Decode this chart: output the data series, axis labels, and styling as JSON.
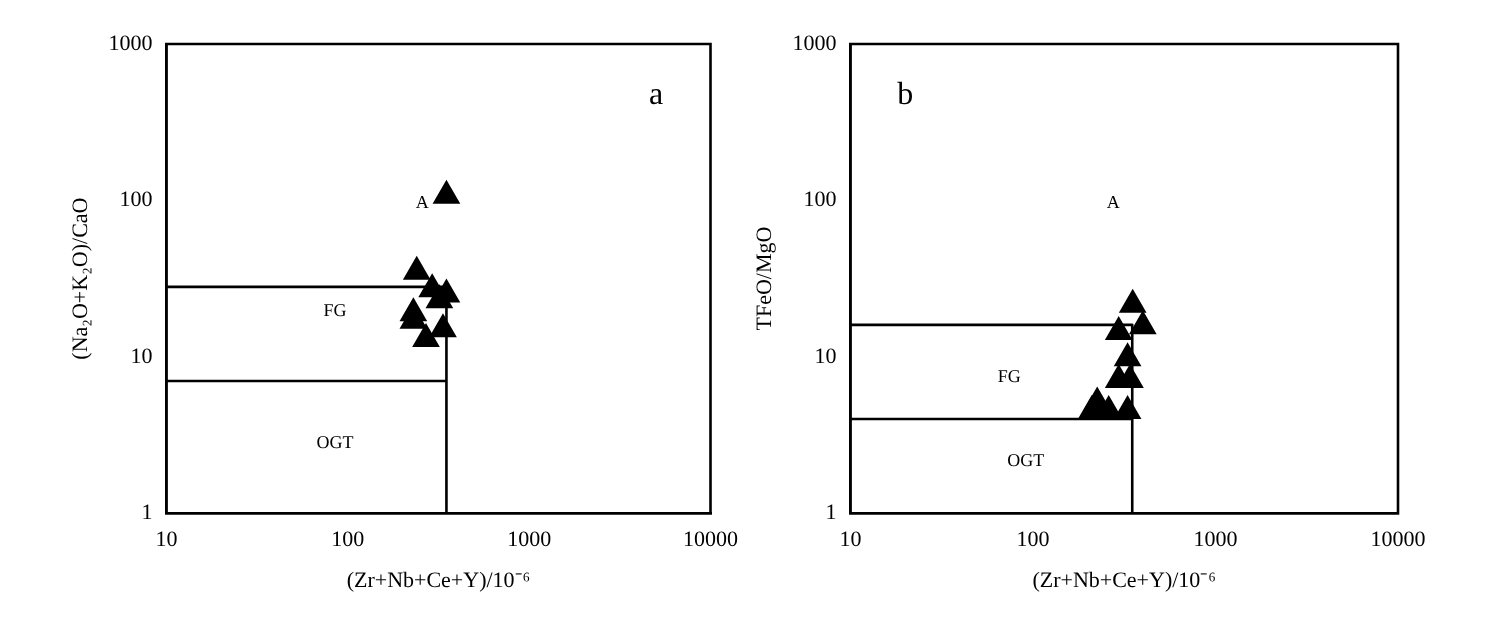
{
  "chart_data": [
    {
      "type": "scatter",
      "xlabel": "(Zr+Nb+Ce+Y)/10⁻⁶",
      "ylabel": "(Na₂O+K₂O)/CaO",
      "log": "xy",
      "grid": false,
      "legend": false,
      "marker": "triangle",
      "xlim": [
        10,
        10000
      ],
      "xticks": [
        10,
        100,
        1000,
        10000
      ],
      "ylim": [
        1,
        1000
      ],
      "yticks": [
        1,
        10,
        100,
        1000
      ],
      "annotations": [
        "a",
        "A",
        "FG",
        "OGT"
      ],
      "series": [
        {
          "color": "#000000",
          "x": [
            350,
            240,
            292,
            350,
            320,
            230,
            230,
            270,
            335
          ],
          "values": [
            107,
            35,
            27,
            25,
            23,
            19,
            17,
            13,
            15
          ]
        },
        {
          "type": "line",
          "color": "#000000",
          "marker": "none",
          "x": [
            10,
            350,
            350
          ],
          "values": [
            28,
            28,
            1
          ]
        },
        {
          "type": "line",
          "color": "#000000",
          "marker": "none",
          "x": [
            10,
            350
          ],
          "values": [
            7,
            7
          ]
        }
      ]
    },
    {
      "type": "scatter",
      "xlabel": "(Zr+Nb+Ce+Y)/10⁻⁶",
      "ylabel": "TFeO/MgO",
      "log": "xy",
      "grid": false,
      "legend": false,
      "marker": "triangle",
      "xlim": [
        10,
        10000
      ],
      "xticks": [
        10,
        100,
        1000,
        10000
      ],
      "ylim": [
        1,
        1000
      ],
      "yticks": [
        1,
        10,
        100,
        1000
      ],
      "annotations": [
        "b",
        "A",
        "FG",
        "OGT"
      ],
      "series": [
        {
          "color": "#000000",
          "x": [
            352,
            400,
            295,
            330,
            295,
            340,
            225,
            260,
            210,
            330
          ],
          "values": [
            21.5,
            15.7,
            14.4,
            9.8,
            7.1,
            7.1,
            5.1,
            4.5,
            4.5,
            4.5
          ]
        },
        {
          "type": "line",
          "color": "#000000",
          "marker": "none",
          "x": [
            10,
            350,
            350
          ],
          "values": [
            16,
            16,
            1
          ]
        },
        {
          "type": "line",
          "color": "#000000",
          "marker": "none",
          "x": [
            10,
            350
          ],
          "values": [
            4,
            4
          ]
        }
      ]
    }
  ]
}
